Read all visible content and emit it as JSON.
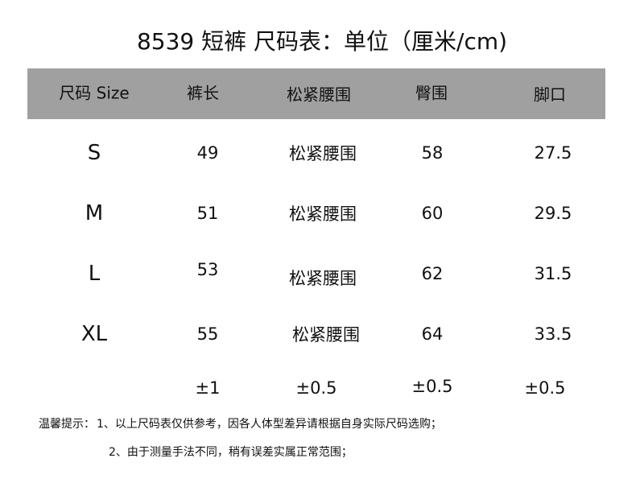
{
  "title": "8539 短裤  尺码表：单位（厘米/cm)",
  "header": {
    "bg_color": "#a0a0a0",
    "columns": [
      "尺码 Size",
      "裤长",
      "松紧腰围",
      "臀围",
      "脚口"
    ]
  },
  "rows": [
    {
      "size": "S",
      "length": "49",
      "waist": "松紧腰围",
      "hip": "58",
      "hem": "27.5"
    },
    {
      "size": "M",
      "length": "51",
      "waist": "松紧腰围",
      "hip": "60",
      "hem": "29.5"
    },
    {
      "size": "L",
      "length": "53",
      "waist": "松紧腰围",
      "hip": "62",
      "hem": "31.5"
    },
    {
      "size": "XL",
      "length": "55",
      "waist": "松紧腰围",
      "hip": "64",
      "hem": "33.5"
    }
  ],
  "tolerance": {
    "length": "±1",
    "waist": "±0.5",
    "hip": "±0.5",
    "hem": "±0.5"
  },
  "notes": {
    "label": "温馨提示：",
    "line1": "1、以上尺码表仅供参考，因各人体型差异请根据自身实际尺码选购；",
    "line2": "2、由于测量手法不同，稍有误差实属正常范围；"
  }
}
